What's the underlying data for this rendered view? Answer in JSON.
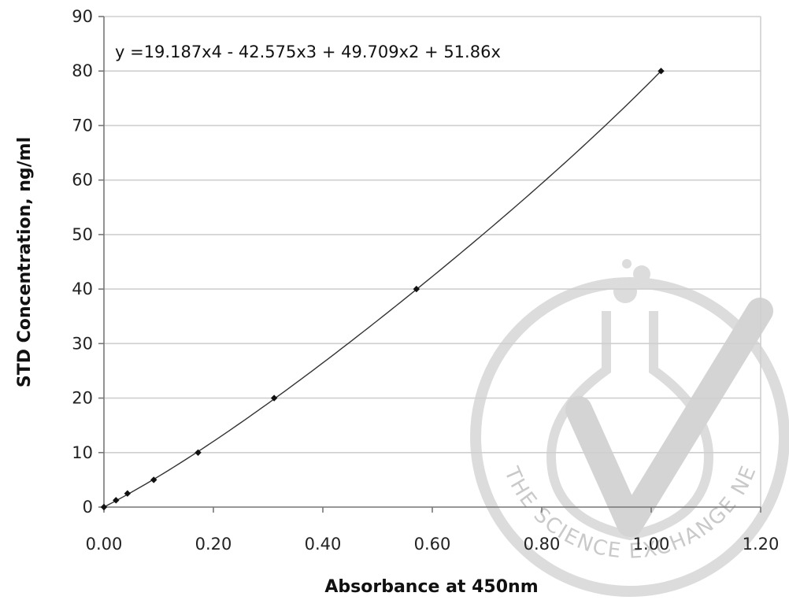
{
  "chart_data": {
    "type": "scatter",
    "xlabel": "Absorbance at 450nm",
    "ylabel": "STD Concentration, ng/ml",
    "xlim": [
      0,
      1.2
    ],
    "ylim": [
      0,
      90
    ],
    "xticks": [
      0,
      0.2,
      0.4,
      0.6,
      0.8,
      1.0,
      1.2
    ],
    "xtick_labels": [
      "0.00",
      "0.20",
      "0.40",
      "0.60",
      "0.80",
      "1.00",
      "1.20"
    ],
    "yticks": [
      0,
      10,
      20,
      30,
      40,
      50,
      60,
      70,
      80,
      90
    ],
    "ytick_labels": [
      "0",
      "10",
      "20",
      "30",
      "40",
      "50",
      "60",
      "70",
      "80",
      "90"
    ],
    "grid": "horizontal",
    "annotation": "y =19.187x4 - 42.575x3 + 49.709x2 + 51.86x",
    "trendline": {
      "type": "polynomial",
      "coefficients": [
        0,
        51.86,
        49.709,
        -42.575,
        19.187
      ]
    },
    "series": [
      {
        "points": [
          {
            "x": 0.0,
            "y": 0
          },
          {
            "x": 0.022,
            "y": 1.25
          },
          {
            "x": 0.043,
            "y": 2.5
          },
          {
            "x": 0.091,
            "y": 5
          },
          {
            "x": 0.172,
            "y": 10
          },
          {
            "x": 0.311,
            "y": 20
          },
          {
            "x": 0.571,
            "y": 40
          },
          {
            "x": 1.018,
            "y": 80
          }
        ]
      }
    ]
  },
  "watermark": {
    "text": "THE SCIENCE EXCHANGE NETWORK",
    "color": "#c9c9c9"
  },
  "colors": {
    "points": "#111111",
    "trendline": "#333333",
    "gridlines": "#cfcfcf"
  }
}
